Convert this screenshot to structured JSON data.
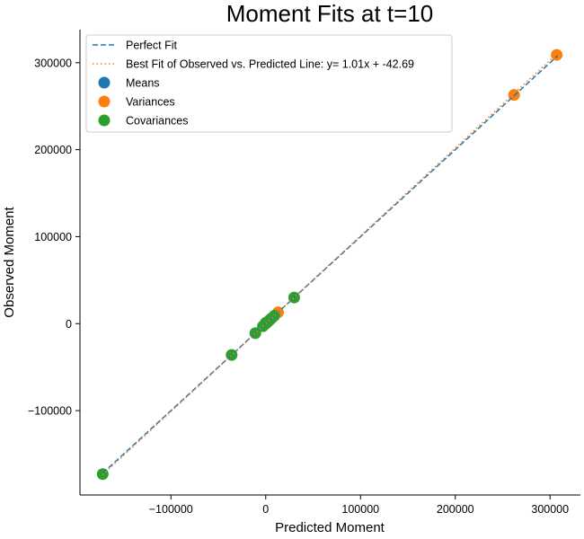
{
  "chart_data": {
    "type": "scatter",
    "title": "Moment Fits at t=10",
    "xlabel": "Predicted Moment",
    "ylabel": "Observed Moment",
    "xlim": [
      -196000,
      332000
    ],
    "ylim": [
      -197000,
      338000
    ],
    "xticks": [
      -100000,
      0,
      100000,
      200000,
      300000
    ],
    "xtick_labels": [
      "−100000",
      "0",
      "100000",
      "200000",
      "300000"
    ],
    "yticks": [
      -100000,
      0,
      100000,
      200000,
      300000
    ],
    "ytick_labels": [
      "−100000",
      "0",
      "100000",
      "200000",
      "300000"
    ],
    "grid": false,
    "legend_position": "upper-left",
    "lines": [
      {
        "name": "Perfect Fit",
        "style": "dashed",
        "color": "#1f77b4",
        "x": [
          -172000,
          308000
        ],
        "y": [
          -172000,
          308000
        ]
      },
      {
        "name": "Best Fit of Observed vs. Predicted Line: y= 1.01x + -42.69",
        "style": "dotted",
        "color": "#ff7f0e",
        "x": [
          -172000,
          308000
        ],
        "y": [
          -173762.69,
          311037.31
        ]
      }
    ],
    "series": [
      {
        "name": "Means",
        "color": "#1f77b4",
        "points": [
          [
            0,
            0
          ],
          [
            500,
            400
          ],
          [
            1000,
            1100
          ]
        ]
      },
      {
        "name": "Variances",
        "color": "#ff7f0e",
        "points": [
          [
            307000,
            309000
          ],
          [
            262000,
            263000
          ],
          [
            13000,
            13000
          ],
          [
            1000,
            1000
          ]
        ]
      },
      {
        "name": "Covariances",
        "color": "#2ca02c",
        "points": [
          [
            -172000,
            -173000
          ],
          [
            -36000,
            -36000
          ],
          [
            -11000,
            -11000
          ],
          [
            -3000,
            -3000
          ],
          [
            0,
            1000
          ],
          [
            2000,
            2000
          ],
          [
            4000,
            4000
          ],
          [
            6000,
            6000
          ],
          [
            9000,
            9000
          ],
          [
            30000,
            30000
          ]
        ]
      }
    ]
  }
}
